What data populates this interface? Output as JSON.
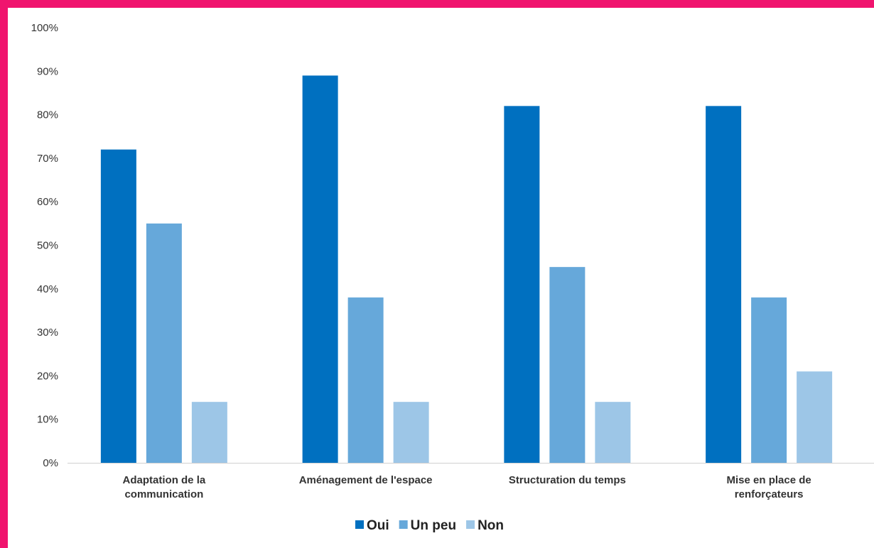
{
  "chart_data": {
    "type": "bar",
    "categories": [
      [
        "Adaptation de la",
        "communication"
      ],
      [
        "Aménagement de l'espace"
      ],
      [
        "Structuration du temps"
      ],
      [
        "Mise en place de",
        "renforçateurs"
      ]
    ],
    "series": [
      {
        "name": "Oui",
        "color": "#0070c0",
        "values": [
          72,
          89,
          82,
          82
        ]
      },
      {
        "name": "Un peu",
        "color": "#66a8da",
        "values": [
          55,
          38,
          45,
          38
        ]
      },
      {
        "name": "Non",
        "color": "#9dc6e7",
        "values": [
          14,
          14,
          14,
          21
        ]
      }
    ],
    "yticks": [
      "0%",
      "10%",
      "20%",
      "30%",
      "40%",
      "50%",
      "60%",
      "70%",
      "80%",
      "90%",
      "100%"
    ],
    "ylim": [
      0,
      100
    ],
    "legend_position": "bottom"
  }
}
